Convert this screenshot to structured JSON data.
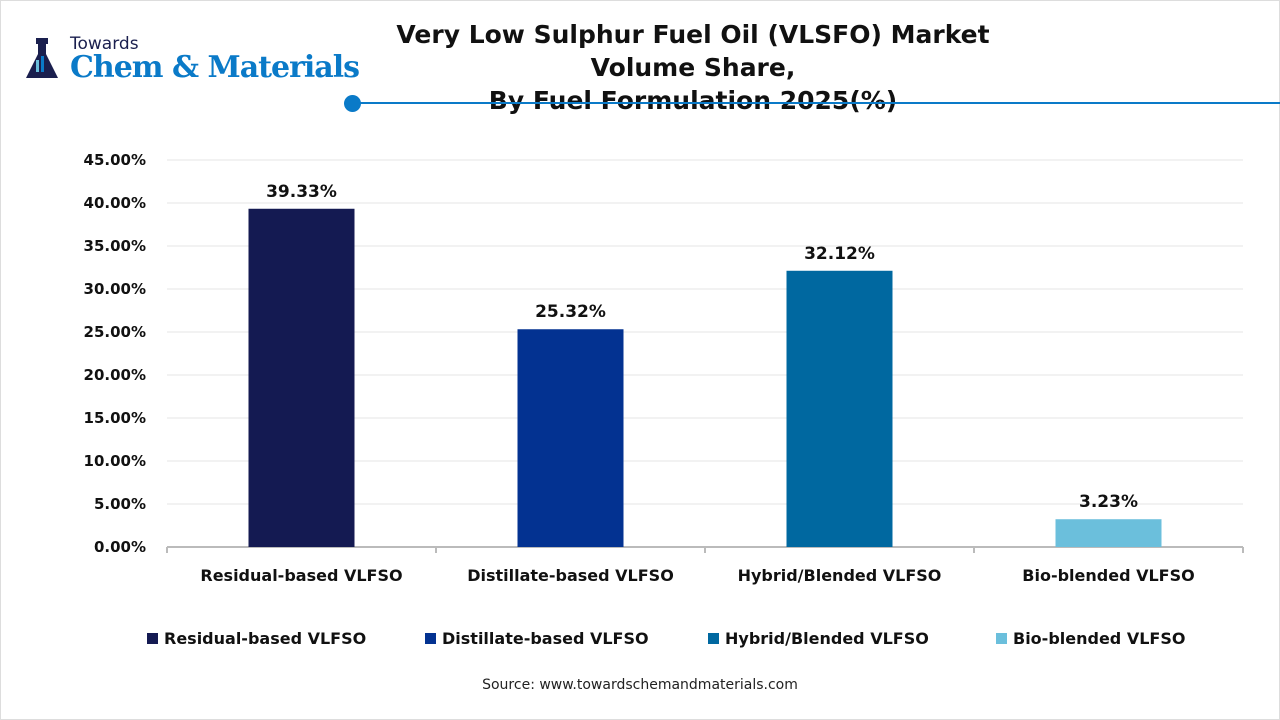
{
  "logo": {
    "line1": "Towards",
    "line2": "Chem & Materials"
  },
  "title_line1": "Very Low Sulphur Fuel Oil (VLSFO) Market Volume Share,",
  "title_line2": "By Fuel Formulation 2025(%)",
  "source": "Source: www.towardschemandmaterials.com",
  "chart_data": {
    "type": "bar",
    "title": "Very Low Sulphur Fuel Oil (VLSFO) Market Volume Share, By Fuel Formulation 2025(%)",
    "categories": [
      "Residual-based VLFSO",
      "Distillate-based VLFSO",
      "Hybrid/Blended VLFSO",
      "Bio-blended VLFSO"
    ],
    "values": [
      39.33,
      25.32,
      32.12,
      3.23
    ],
    "data_labels": [
      "39.33%",
      "25.32%",
      "32.12%",
      "3.23%"
    ],
    "colors": [
      "#141a52",
      "#033291",
      "#0068a0",
      "#6bbfdc"
    ],
    "ylim": [
      0,
      45
    ],
    "yticks": [
      "0.00%",
      "5.00%",
      "10.00%",
      "15.00%",
      "20.00%",
      "25.00%",
      "30.00%",
      "35.00%",
      "40.00%",
      "45.00%"
    ],
    "grid": true,
    "legend": "bottom"
  }
}
